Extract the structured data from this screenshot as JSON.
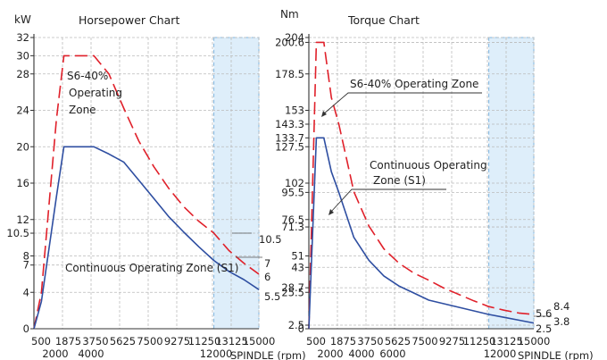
{
  "chart_data": [
    {
      "type": "line",
      "title": "Horsepower Chart",
      "ylabel": "kW",
      "xlabel": "SPINDLE (rpm)",
      "xlim": [
        0,
        15000
      ],
      "ylim": [
        0,
        32
      ],
      "grid": true,
      "y_ticks": [
        0,
        4,
        7,
        8,
        10.5,
        12,
        16,
        20,
        24,
        28,
        30,
        32
      ],
      "x_tick_labels_top": [
        "500",
        "1875",
        "3750",
        "5625",
        "7500",
        "9275",
        "11250",
        "13125",
        "15000"
      ],
      "x_tick_labels_bottom": [
        "2000",
        "4000",
        "12000"
      ],
      "shaded_region": [
        12000,
        15000
      ],
      "series": [
        {
          "name": "S6-40% Operating Zone",
          "style": "dashed",
          "color": "#e0202a",
          "x": [
            0,
            500,
            1500,
            2000,
            3000,
            4000,
            5000,
            6000,
            7000,
            8000,
            9000,
            10000,
            11000,
            12000,
            13000,
            14000,
            15000
          ],
          "y": [
            0,
            4,
            23,
            30,
            30,
            30,
            28,
            24.2,
            20.6,
            17.8,
            15.4,
            13.4,
            11.8,
            10.5,
            8.6,
            7.2,
            6
          ]
        },
        {
          "name": "Continuous Operating Zone (S1)",
          "style": "solid",
          "color": "#2e4ea1",
          "x": [
            0,
            500,
            1500,
            2000,
            3000,
            4000,
            5000,
            6000,
            7000,
            8000,
            9000,
            10000,
            11000,
            12000,
            13000,
            14000,
            15000
          ],
          "y": [
            0,
            3,
            14.5,
            20,
            20,
            20,
            19.2,
            18.3,
            16.3,
            14.3,
            12.3,
            10.6,
            9.0,
            7.5,
            6.3,
            5.4,
            4.3
          ]
        }
      ],
      "end_labels": [
        "10.5",
        "7",
        "6",
        "5.5"
      ],
      "annotations": [
        "S6-40%",
        "Operating",
        "Zone",
        "Continuous Operating Zone (S1)"
      ]
    },
    {
      "type": "line",
      "title": "Torque Chart",
      "ylabel": "Nm",
      "xlabel": "SPINDLE (rpm)",
      "xlim": [
        0,
        15000
      ],
      "ylim": [
        0,
        204
      ],
      "grid": true,
      "y_ticks": [
        0,
        2.5,
        25.5,
        28.7,
        43,
        51,
        71.3,
        76.5,
        95.5,
        102,
        127.5,
        133.7,
        143.3,
        153,
        178.5,
        200.6,
        204
      ],
      "x_tick_labels_top": [
        "500",
        "1875",
        "3750",
        "5625",
        "7500",
        "9275",
        "11250",
        "13125",
        "15000"
      ],
      "x_tick_labels_bottom": [
        "2000",
        "4000",
        "6000",
        "12000"
      ],
      "shaded_region": [
        12000,
        15000
      ],
      "series": [
        {
          "name": "S6-40% Operating Zone",
          "style": "dashed",
          "color": "#e0202a",
          "x": [
            0,
            500,
            1000,
            1500,
            2000,
            3000,
            4000,
            5000,
            6000,
            7000,
            8000,
            9000,
            10000,
            11000,
            12000,
            13000,
            14000,
            15000
          ],
          "y": [
            0,
            200.6,
            200.6,
            162,
            143.3,
            96,
            72,
            56,
            46,
            39,
            34,
            28.5,
            24,
            19.5,
            15.5,
            13,
            11,
            10
          ]
        },
        {
          "name": "Continuous Operating Zone (S1)",
          "style": "solid",
          "color": "#2e4ea1",
          "x": [
            0,
            500,
            1000,
            1500,
            2000,
            3000,
            4000,
            5000,
            6000,
            7000,
            8000,
            9000,
            10000,
            11000,
            12000,
            13000,
            14000,
            15000
          ],
          "y": [
            0,
            133.7,
            133.7,
            110,
            95.5,
            64,
            48,
            37,
            30,
            25,
            20,
            17.5,
            15,
            12.5,
            10,
            8,
            6,
            4
          ]
        }
      ],
      "end_labels": [
        "8.4",
        "5.6",
        "3.8",
        "2.5"
      ],
      "annotations": [
        "S6-40%  Operating Zone",
        "Continuous Operating",
        "Zone (S1)"
      ]
    }
  ]
}
